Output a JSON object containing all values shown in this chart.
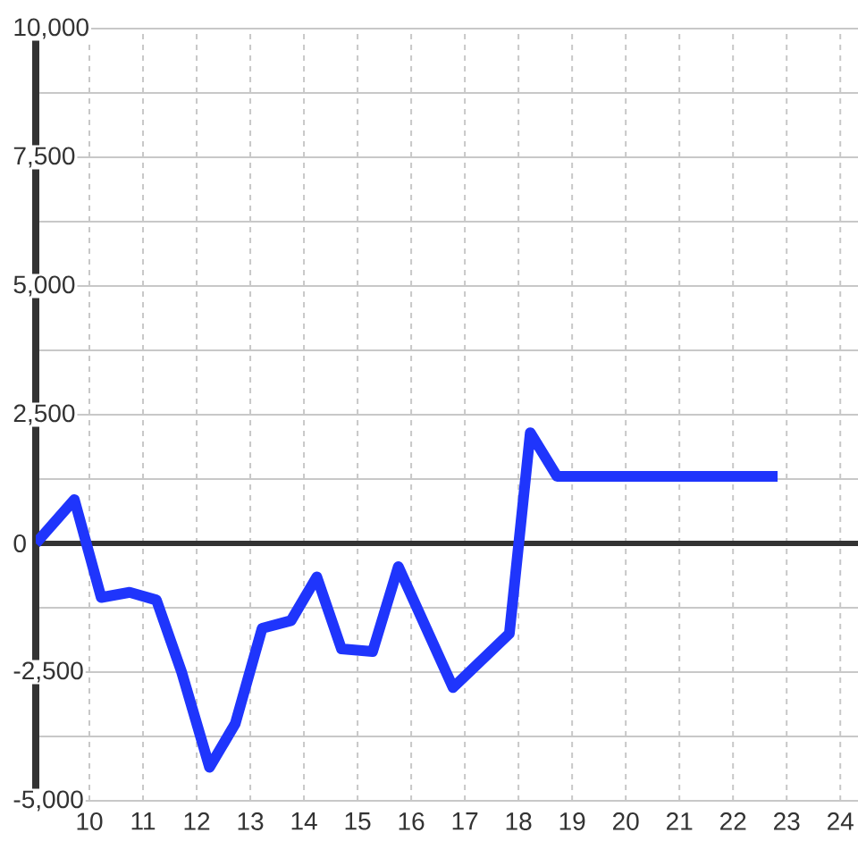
{
  "chart_data": {
    "type": "line",
    "x": [
      9,
      9.72,
      10.22,
      10.75,
      11.25,
      11.72,
      12.24,
      12.72,
      13.22,
      13.76,
      14.24,
      14.7,
      15.28,
      15.76,
      16.78,
      17.83,
      18.22,
      18.72,
      22.83
    ],
    "series": [
      {
        "color": "#1f35fc",
        "values": [
          0,
          850,
          -1050,
          -950,
          -1100,
          -2500,
          -4350,
          -3500,
          -1650,
          -1500,
          -650,
          -2050,
          -2100,
          -450,
          -2800,
          -1750,
          2150,
          1300,
          1300
        ]
      }
    ],
    "xlim": [
      9,
      24.33
    ],
    "ylim": [
      -5000,
      10000
    ],
    "xticks": [
      10,
      11,
      12,
      13,
      14,
      15,
      16,
      17,
      18,
      19,
      20,
      21,
      22,
      23,
      24
    ],
    "yticks": [
      {
        "value": -5000,
        "label": "-5,000"
      },
      {
        "value": -3750,
        "label": null
      },
      {
        "value": -2500,
        "label": "-2,500"
      },
      {
        "value": -1250,
        "label": null
      },
      0,
      {
        "value": 1250,
        "label": null
      },
      {
        "value": 2500,
        "label": "2,500"
      },
      {
        "value": 3750,
        "label": null
      },
      {
        "value": 5000,
        "label": "5,000"
      },
      {
        "value": 6250,
        "label": null
      },
      {
        "value": 7500,
        "label": "7,500"
      },
      {
        "value": 8750,
        "label": null
      },
      {
        "value": 10000,
        "label": "10,000"
      }
    ],
    "grid": true,
    "marker": "none",
    "line_style": "solid",
    "ref_lines": [
      {
        "axis": "y",
        "value": 0,
        "color": "#333333"
      }
    ]
  }
}
